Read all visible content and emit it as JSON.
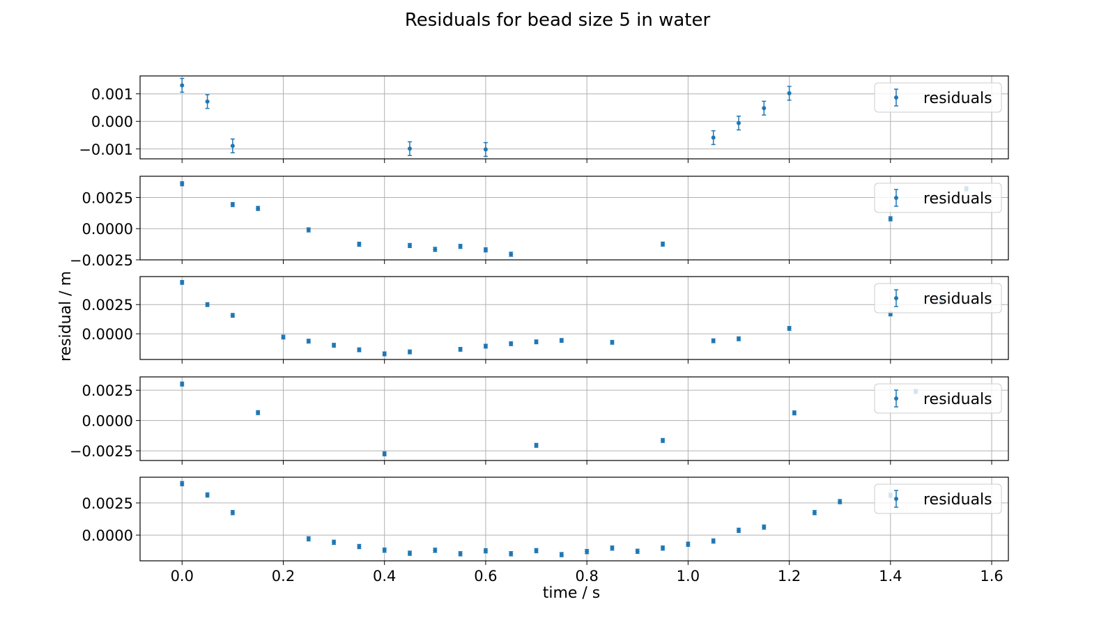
{
  "title": "Residuals for bead  size 5 in water",
  "xlabel": "time / s",
  "ylabel": "residual / m",
  "colors": {
    "marker": "#1f77b4",
    "grid": "#b0b0b0",
    "axes": "#000000"
  },
  "chart_data": [
    {
      "type": "scatter",
      "legend": "residuals",
      "legend_placement": "upper right",
      "grid": true,
      "xlim": [
        -0.083,
        1.633
      ],
      "ylim": [
        -0.00136,
        0.00165
      ],
      "yticks": [
        -0.001,
        0.0,
        0.001
      ],
      "ytick_labels": [
        "−0.001",
        "0.000",
        "0.001"
      ],
      "err": 0.00025,
      "x": [
        0.0,
        0.05,
        0.1,
        0.45,
        0.6,
        1.05,
        1.1,
        1.15,
        1.2
      ],
      "y": [
        0.00131,
        0.00072,
        -0.00089,
        -0.00099,
        -0.00102,
        -0.00059,
        -6e-05,
        0.00048,
        0.00102
      ]
    },
    {
      "type": "scatter",
      "legend": "residuals",
      "legend_placement": "upper right",
      "grid": true,
      "xlim": [
        -0.083,
        1.633
      ],
      "ylim": [
        -0.0025,
        0.0042
      ],
      "yticks": [
        -0.0025,
        0.0,
        0.0025
      ],
      "ytick_labels": [
        "−0.0025",
        "0.0000",
        "0.0025"
      ],
      "err": 0.00016,
      "x": [
        0.0,
        0.1,
        0.15,
        0.25,
        0.35,
        0.45,
        0.5,
        0.55,
        0.6,
        0.65,
        0.95,
        1.4,
        1.55
      ],
      "y": [
        0.0036,
        0.00193,
        0.00162,
        -0.0001,
        -0.00125,
        -0.00135,
        -0.00166,
        -0.00142,
        -0.0017,
        -0.00205,
        -0.00124,
        0.00079,
        0.0032
      ]
    },
    {
      "type": "scatter",
      "legend": "residuals",
      "legend_placement": "upper right",
      "grid": true,
      "xlim": [
        -0.083,
        1.633
      ],
      "ylim": [
        -0.0022,
        0.0049
      ],
      "yticks": [
        0.0,
        0.0025
      ],
      "ytick_labels": [
        "0.0000",
        "0.0025"
      ],
      "err": 0.00016,
      "x": [
        0.0,
        0.05,
        0.1,
        0.2,
        0.25,
        0.3,
        0.35,
        0.4,
        0.45,
        0.55,
        0.6,
        0.65,
        0.7,
        0.75,
        0.85,
        1.05,
        1.1,
        1.2,
        1.4,
        1.5
      ],
      "y": [
        0.0044,
        0.0025,
        0.00158,
        -0.00028,
        -0.00063,
        -0.00098,
        -0.00137,
        -0.00172,
        -0.00155,
        -0.00133,
        -0.00106,
        -0.00085,
        -0.00069,
        -0.00057,
        -0.00073,
        -0.0006,
        -0.00043,
        0.00046,
        0.0017,
        0.0027
      ]
    },
    {
      "type": "scatter",
      "legend": "residuals",
      "legend_placement": "upper right",
      "grid": true,
      "xlim": [
        -0.083,
        1.633
      ],
      "ylim": [
        -0.0033,
        0.0036
      ],
      "yticks": [
        -0.0025,
        0.0,
        0.0025
      ],
      "ytick_labels": [
        "−0.0025",
        "0.0000",
        "0.0025"
      ],
      "err": 0.00016,
      "x": [
        0.0,
        0.15,
        0.4,
        0.7,
        0.95,
        1.21,
        1.45
      ],
      "y": [
        0.00301,
        0.00065,
        -0.00275,
        -0.00205,
        -0.00165,
        0.00063,
        0.0024
      ]
    },
    {
      "type": "scatter",
      "legend": "residuals",
      "legend_placement": "upper right",
      "grid": true,
      "xlim": [
        -0.083,
        1.633
      ],
      "ylim": [
        -0.002,
        0.0045
      ],
      "yticks": [
        0.0,
        0.0025
      ],
      "ytick_labels": [
        "0.0000",
        "0.0025"
      ],
      "xticks": [
        0.0,
        0.2,
        0.4,
        0.6,
        0.8,
        1.0,
        1.2,
        1.4,
        1.6
      ],
      "xtick_labels": [
        "0.0",
        "0.2",
        "0.4",
        "0.6",
        "0.8",
        "1.0",
        "1.2",
        "1.4",
        "1.6"
      ],
      "err": 0.00016,
      "x": [
        0.0,
        0.05,
        0.1,
        0.25,
        0.3,
        0.35,
        0.4,
        0.45,
        0.5,
        0.55,
        0.6,
        0.65,
        0.7,
        0.75,
        0.8,
        0.85,
        0.9,
        0.95,
        1.0,
        1.05,
        1.1,
        1.15,
        1.25,
        1.3,
        1.4
      ],
      "y": [
        0.004,
        0.00312,
        0.00175,
        -0.00029,
        -0.00056,
        -0.00089,
        -0.00117,
        -0.00141,
        -0.00118,
        -0.00145,
        -0.00122,
        -0.00145,
        -0.00121,
        -0.00152,
        -0.00128,
        -0.00101,
        -0.00126,
        -0.00101,
        -0.00071,
        -0.00046,
        0.00037,
        0.00062,
        0.00175,
        0.0026,
        0.0031
      ]
    }
  ]
}
